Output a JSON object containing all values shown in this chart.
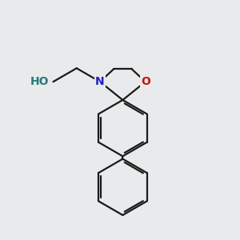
{
  "background_color": "#e8eaeb",
  "bond_color": "#1a1a1a",
  "N_color": "#2222bb",
  "O_color": "#cc1111",
  "H_label_color": "#2a7a7a",
  "bond_width": 1.6,
  "dbo": 0.038,
  "figsize": [
    3.0,
    3.0
  ],
  "dpi": 100,
  "xlim": [
    -0.2,
    2.8
  ],
  "ylim": [
    -2.6,
    1.8
  ]
}
